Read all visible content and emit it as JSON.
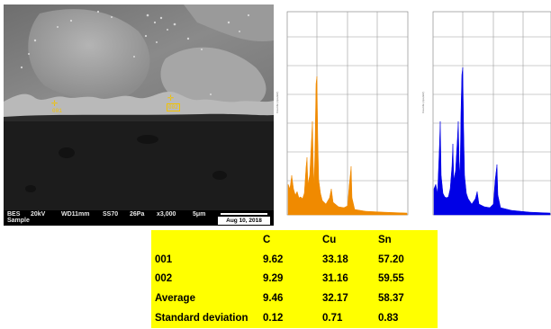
{
  "sem": {
    "databar": {
      "mode": "BES",
      "sub": "Sample",
      "kv": "20kV",
      "wd": "WD11mm",
      "ss": "SS70",
      "pa": "26Pa",
      "mag": "x3,000",
      "scale": "5μm",
      "date": "Aug 10, 2018"
    },
    "markers": [
      {
        "label": "001"
      },
      {
        "label": "002"
      }
    ]
  },
  "colors": {
    "spectrum1": "#f08a00",
    "spectrum2": "#0000e6",
    "table_bg": "#ffff00"
  },
  "table": {
    "headers": [
      "",
      "C",
      "Cu",
      "Sn"
    ],
    "rows": [
      [
        "001",
        "9.62",
        "33.18",
        "57.20"
      ],
      [
        "002",
        "9.29",
        "31.16",
        "59.55"
      ],
      [
        "Average",
        "9.46",
        "32.17",
        "58.37"
      ],
      [
        "Standard deviation",
        "0.12",
        "0.71",
        "0.83"
      ]
    ]
  }
}
